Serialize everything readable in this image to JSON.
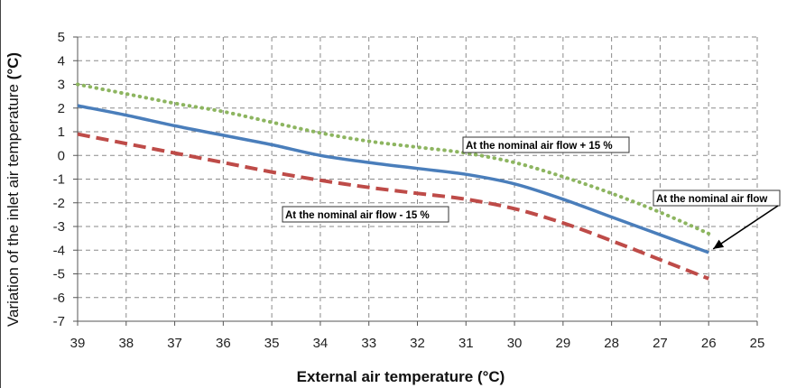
{
  "chart_data": {
    "type": "line",
    "xlabel": "External air temperature (°C)",
    "ylabel_main": "Variation of the inlet air temperature ",
    "ylabel_unit": "(°C)",
    "x": [
      39,
      38,
      37,
      36,
      35,
      34,
      33,
      32,
      31,
      30,
      29,
      28,
      27,
      26
    ],
    "xlim": [
      39,
      25
    ],
    "x_reversed": true,
    "x_ticks": [
      "39",
      "38",
      "37",
      "36",
      "35",
      "34",
      "33",
      "32",
      "31",
      "30",
      "29",
      "28",
      "27",
      "26",
      "25"
    ],
    "ylim": [
      -7,
      5
    ],
    "y_ticks": [
      "5",
      "4",
      "3",
      "2",
      "1",
      "0",
      "-1",
      "-2",
      "-3",
      "-4",
      "-5",
      "-6",
      "-7"
    ],
    "grid": true,
    "series": [
      {
        "name": "At the nominal air flow + 15 %",
        "color": "#8DB560",
        "style": "dotted",
        "values": [
          3.0,
          2.6,
          2.2,
          1.85,
          1.4,
          0.95,
          0.6,
          0.35,
          0.1,
          -0.3,
          -0.9,
          -1.6,
          -2.4,
          -3.3
        ]
      },
      {
        "name": "At the nominal air flow",
        "color": "#4A7EBB",
        "style": "solid",
        "values": [
          2.1,
          1.7,
          1.25,
          0.85,
          0.45,
          0.0,
          -0.3,
          -0.55,
          -0.8,
          -1.2,
          -1.85,
          -2.6,
          -3.35,
          -4.1
        ]
      },
      {
        "name": "At the nominal air flow - 15 %",
        "color": "#BE4B48",
        "style": "dashed",
        "values": [
          0.9,
          0.5,
          0.1,
          -0.3,
          -0.7,
          -1.05,
          -1.35,
          -1.6,
          -1.85,
          -2.25,
          -2.85,
          -3.6,
          -4.4,
          -5.2
        ]
      }
    ],
    "annotations": [
      {
        "text": "At the nominal air flow + 15 %",
        "series": 0
      },
      {
        "text": "At the nominal air flow",
        "series": 1,
        "arrow": true
      },
      {
        "text": "At the nominal air flow - 15 %",
        "series": 2
      }
    ]
  }
}
